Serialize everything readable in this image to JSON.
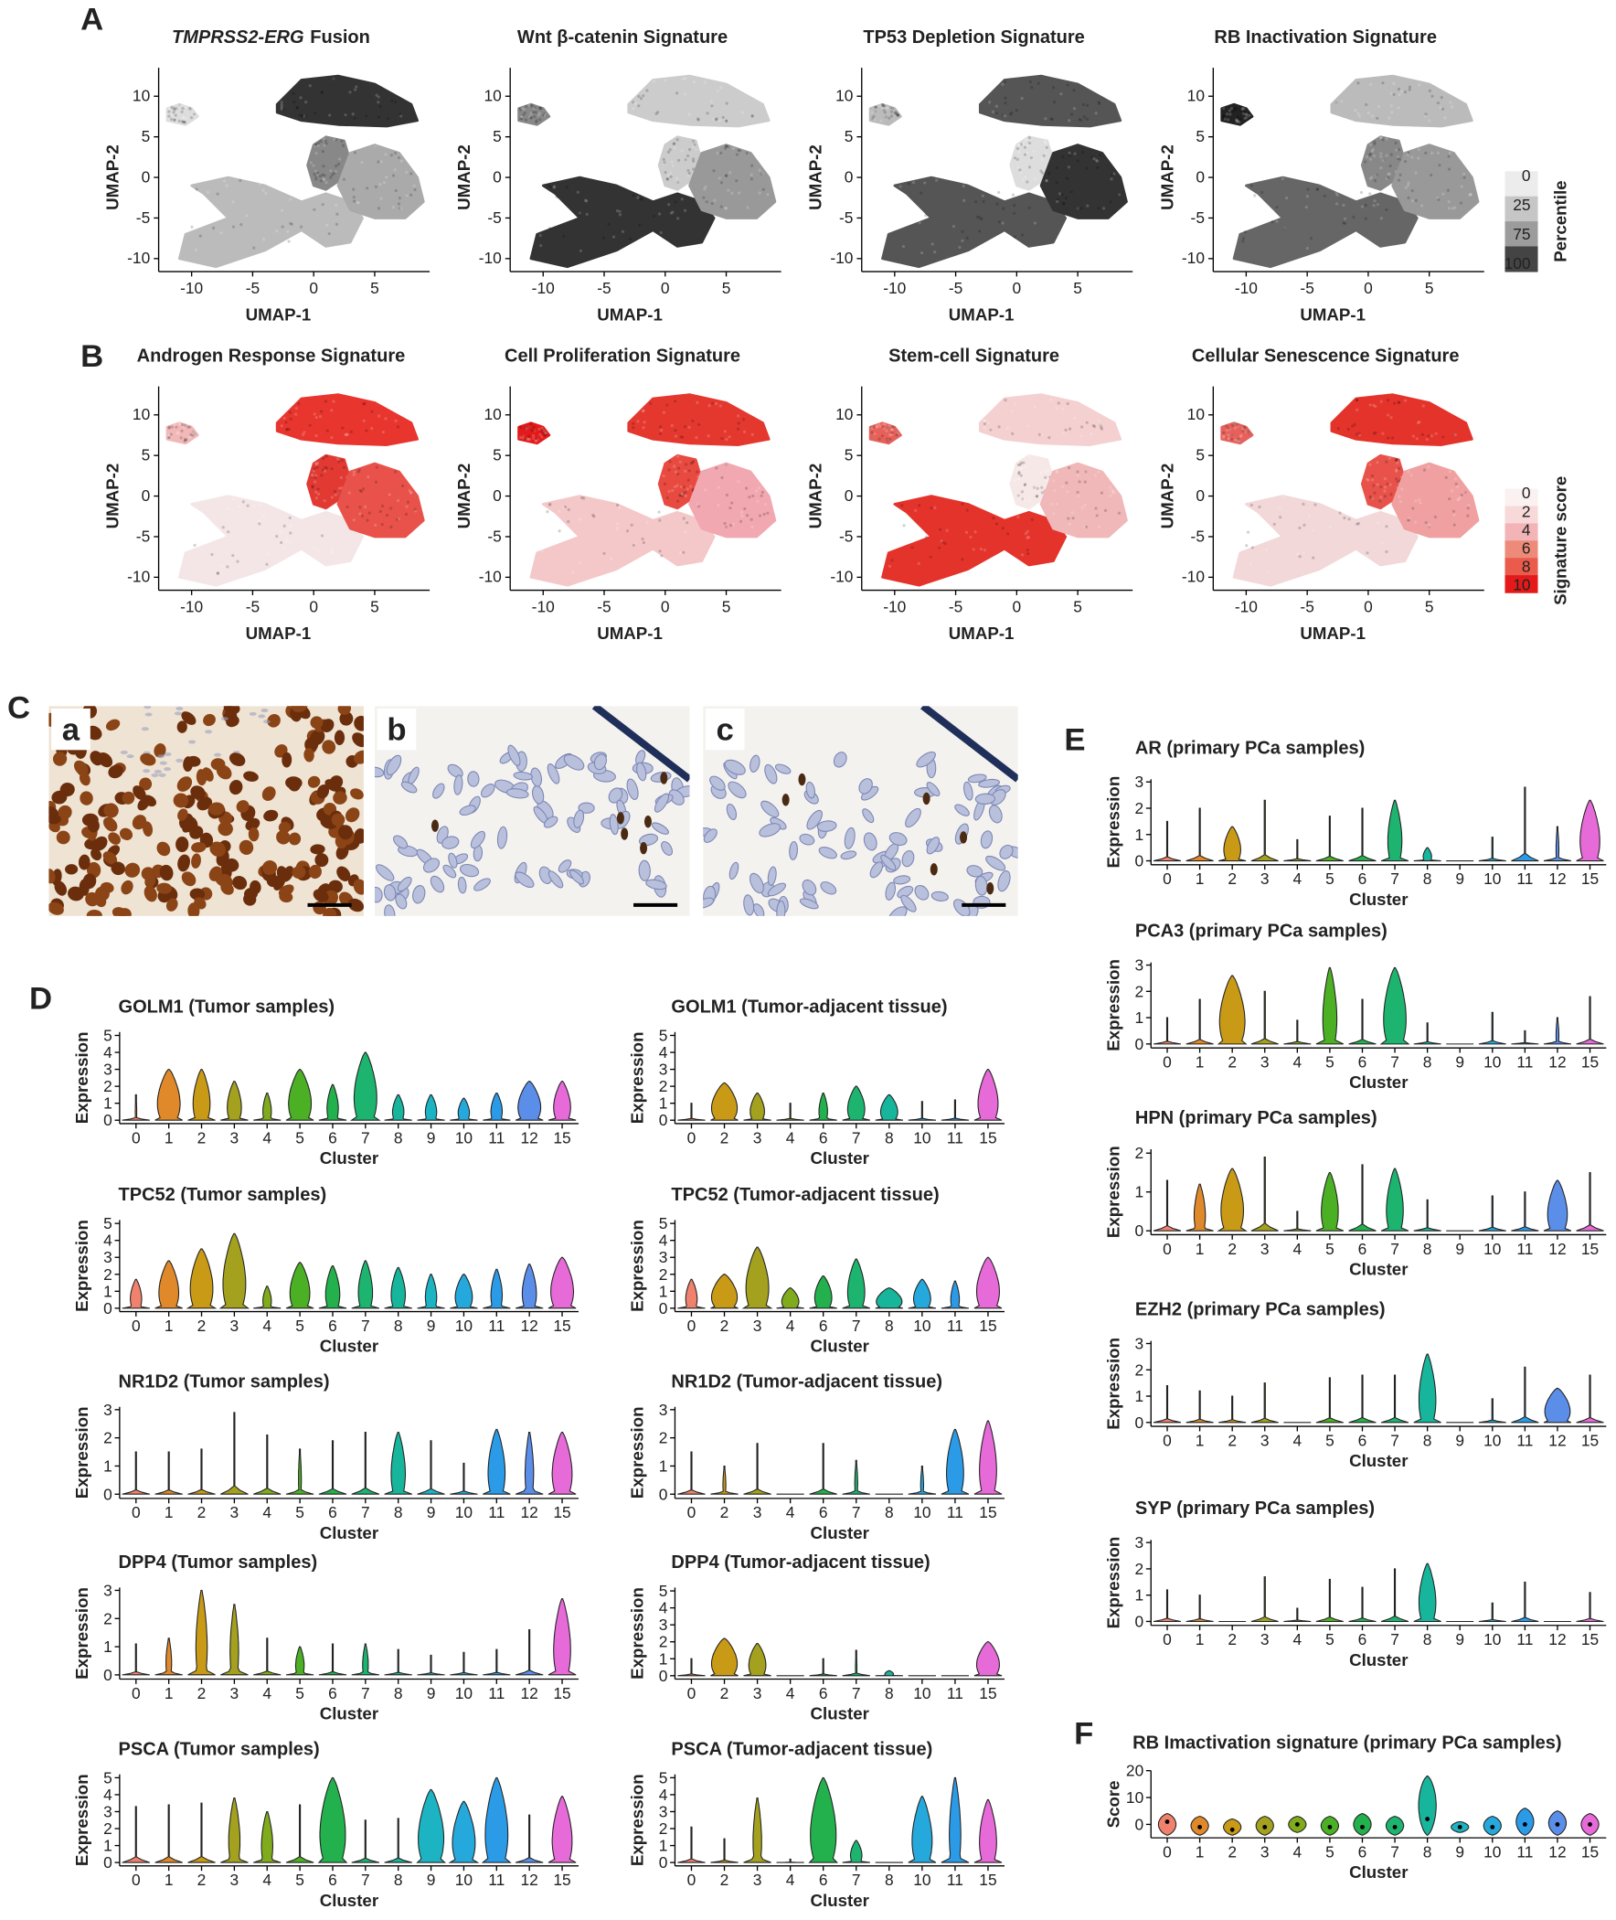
{
  "panel_labels": [
    "A",
    "B",
    "C",
    "D",
    "E",
    "F"
  ],
  "images": {
    "labels": [
      "a",
      "b",
      "c"
    ]
  },
  "cluster_colors": {
    "0": "#f0826d",
    "1": "#e0892a",
    "2": "#c99a16",
    "3": "#a3a11d",
    "4": "#7fab1c",
    "5": "#4cb025",
    "6": "#22b14c",
    "7": "#1db46f",
    "8": "#17b59b",
    "9": "#1cb3c3",
    "10": "#25a9dc",
    "11": "#2b9be8",
    "12": "#5b8ee8",
    "15": "#e66ad7"
  },
  "legends": [
    {
      "title": "Percentile",
      "labels": [
        0,
        25,
        75,
        100
      ],
      "colors": [
        "#ececec",
        "#c6c6c6",
        "#9c9c9c",
        "#444444"
      ]
    },
    {
      "title": "Signature score",
      "labels": [
        0,
        2,
        4,
        6,
        8,
        10
      ],
      "colors": [
        "#fbf1f1",
        "#f8d9d9",
        "#f3b4b8",
        "#ee8a7a",
        "#ea5b4b",
        "#e41a1a"
      ]
    }
  ],
  "chart_data": [
    {
      "type": "umap",
      "title_italic": "TMPRSS2-ERG",
      "title": "Fusion",
      "xlabel": "UMAP-1",
      "ylabel": "UMAP-2",
      "xlim": [
        -12.7,
        9.5
      ],
      "ylim": [
        -11.6,
        13.5
      ],
      "xticks": [
        -10,
        -5,
        0,
        5
      ],
      "yticks": [
        -10,
        -5,
        0,
        5,
        10
      ],
      "region_colors": [
        "#333333",
        "#dddddd",
        "#888888",
        "#bbbbbb",
        "#aaaaaa"
      ]
    },
    {
      "type": "umap",
      "title": "Wnt β-catenin Signature",
      "xlabel": "UMAP-1",
      "ylabel": "UMAP-2",
      "xlim": [
        -12.7,
        9.5
      ],
      "ylim": [
        -11.6,
        13.5
      ],
      "xticks": [
        -10,
        -5,
        0,
        5
      ],
      "yticks": [
        -10,
        -5,
        0,
        5,
        10
      ],
      "region_colors": [
        "#cccccc",
        "#888888",
        "#cccccc",
        "#333333",
        "#999999"
      ]
    },
    {
      "type": "umap",
      "title": "TP53 Depletion Signature",
      "xlabel": "UMAP-1",
      "ylabel": "UMAP-2",
      "xlim": [
        -12.7,
        9.5
      ],
      "ylim": [
        -11.6,
        13.5
      ],
      "xticks": [
        -10,
        -5,
        0,
        5
      ],
      "yticks": [
        -10,
        -5,
        0,
        5,
        10
      ],
      "region_colors": [
        "#555555",
        "#bbbbbb",
        "#dddddd",
        "#555555",
        "#333333"
      ]
    },
    {
      "type": "umap",
      "title": "RB Inactivation Signature",
      "xlabel": "UMAP-1",
      "ylabel": "UMAP-2",
      "xlim": [
        -12.7,
        9.5
      ],
      "ylim": [
        -11.6,
        13.5
      ],
      "xticks": [
        -10,
        -5,
        0,
        5
      ],
      "yticks": [
        -10,
        -5,
        0,
        5,
        10
      ],
      "region_colors": [
        "#bbbbbb",
        "#222222",
        "#888888",
        "#666666",
        "#999999"
      ]
    },
    {
      "type": "umap",
      "title": "Androgen Response Signature",
      "xlabel": "UMAP-1",
      "ylabel": "UMAP-2",
      "xlim": [
        -12.7,
        9.5
      ],
      "ylim": [
        -11.6,
        13.5
      ],
      "xticks": [
        -10,
        -5,
        0,
        5
      ],
      "yticks": [
        -10,
        -5,
        0,
        5,
        10
      ],
      "region_colors": [
        "#e8352e",
        "#f2b8b8",
        "#e23a33",
        "#f4e6e6",
        "#e8524a"
      ]
    },
    {
      "type": "umap",
      "title": "Cell Proliferation Signature",
      "xlabel": "UMAP-1",
      "ylabel": "UMAP-2",
      "xlim": [
        -12.7,
        9.5
      ],
      "ylim": [
        -11.6,
        13.5
      ],
      "xticks": [
        -10,
        -5,
        0,
        5
      ],
      "yticks": [
        -10,
        -5,
        0,
        5,
        10
      ],
      "region_colors": [
        "#e4382f",
        "#e41a1a",
        "#e84a40",
        "#f4c8c8",
        "#f2a8b0"
      ]
    },
    {
      "type": "umap",
      "title": "Stem-cell Signature",
      "xlabel": "UMAP-1",
      "ylabel": "UMAP-2",
      "xlim": [
        -12.7,
        9.5
      ],
      "ylim": [
        -11.6,
        13.5
      ],
      "xticks": [
        -10,
        -5,
        0,
        5
      ],
      "yticks": [
        -10,
        -5,
        0,
        5,
        10
      ],
      "region_colors": [
        "#f4d0d0",
        "#e8605a",
        "#f7e8e8",
        "#e4332b",
        "#f0b8b8"
      ]
    },
    {
      "type": "umap",
      "title": "Cellular Senescence Signature",
      "xlabel": "UMAP-1",
      "ylabel": "UMAP-2",
      "xlim": [
        -12.7,
        9.5
      ],
      "ylim": [
        -11.6,
        13.5
      ],
      "xticks": [
        -10,
        -5,
        0,
        5
      ],
      "yticks": [
        -10,
        -5,
        0,
        5,
        10
      ],
      "region_colors": [
        "#e4332b",
        "#e8605a",
        "#e8524a",
        "#f2d8d8",
        "#f0a0a0"
      ]
    },
    {
      "type": "violin",
      "title": "GOLM1 (Tumor samples)",
      "xlabel": "Cluster",
      "ylabel": "Expression",
      "categories": [
        "0",
        "1",
        "2",
        "3",
        "4",
        "5",
        "6",
        "7",
        "8",
        "9",
        "10",
        "11",
        "12",
        "15"
      ],
      "ylim": [
        -0.2,
        5.2
      ],
      "yticks": [
        0,
        1,
        2,
        3,
        4,
        5
      ],
      "values": [
        1.5,
        3,
        3,
        2.3,
        1.6,
        3,
        2.1,
        4,
        1.5,
        1.5,
        1.3,
        1.6,
        2.3,
        2.3
      ],
      "widths": [
        0.05,
        0.8,
        0.6,
        0.5,
        0.3,
        0.8,
        0.4,
        0.8,
        0.4,
        0.4,
        0.4,
        0.4,
        0.8,
        0.6
      ]
    },
    {
      "type": "violin",
      "title": "GOLM1 (Tumor-adjacent tissue)",
      "xlabel": "Cluster",
      "ylabel": "Expression",
      "categories": [
        "0",
        "2",
        "3",
        "4",
        "6",
        "7",
        "8",
        "10",
        "11",
        "15"
      ],
      "ylim": [
        -0.2,
        5.2
      ],
      "yticks": [
        0,
        1,
        2,
        3,
        4,
        5
      ],
      "values": [
        1,
        2.2,
        1.6,
        1,
        1.6,
        2,
        1.5,
        1.1,
        1.2,
        3
      ],
      "widths": [
        0.03,
        0.9,
        0.5,
        0.03,
        0.3,
        0.6,
        0.6,
        0.03,
        0.03,
        0.7
      ]
    },
    {
      "type": "violin",
      "title": "TPC52 (Tumor samples)",
      "xlabel": "Cluster",
      "ylabel": "Expression",
      "categories": [
        "0",
        "1",
        "2",
        "3",
        "4",
        "5",
        "6",
        "7",
        "8",
        "9",
        "10",
        "11",
        "12",
        "15"
      ],
      "ylim": [
        -0.2,
        5.2
      ],
      "yticks": [
        0,
        1,
        2,
        3,
        4,
        5
      ],
      "values": [
        1.7,
        2.8,
        3.5,
        4.4,
        1.3,
        2.7,
        2.5,
        2.8,
        2.4,
        2,
        2,
        2.3,
        2.6,
        3
      ],
      "widths": [
        0.4,
        0.7,
        0.8,
        0.8,
        0.3,
        0.7,
        0.5,
        0.5,
        0.5,
        0.4,
        0.6,
        0.4,
        0.5,
        0.8
      ]
    },
    {
      "type": "violin",
      "title": "TPC52 (Tumor-adjacent tissue)",
      "xlabel": "Cluster",
      "ylabel": "Expression",
      "categories": [
        "0",
        "2",
        "3",
        "4",
        "6",
        "7",
        "8",
        "10",
        "11",
        "15"
      ],
      "ylim": [
        -0.2,
        5.2
      ],
      "yticks": [
        0,
        1,
        2,
        3,
        4,
        5
      ],
      "values": [
        1.7,
        2,
        3.6,
        1.2,
        1.9,
        2.9,
        1.2,
        1.7,
        1.6,
        3
      ],
      "widths": [
        0.4,
        0.9,
        0.8,
        0.6,
        0.6,
        0.6,
        0.9,
        0.6,
        0.3,
        0.8
      ]
    },
    {
      "type": "violin",
      "title": "NR1D2 (Tumor samples)",
      "xlabel": "Cluster",
      "ylabel": "Expression",
      "categories": [
        "0",
        "1",
        "2",
        "3",
        "4",
        "5",
        "6",
        "7",
        "8",
        "9",
        "10",
        "11",
        "12",
        "15"
      ],
      "ylim": [
        -0.15,
        3.1
      ],
      "yticks": [
        0,
        1,
        2,
        3
      ],
      "values": [
        1.5,
        1.5,
        1.6,
        2.9,
        2.1,
        1.6,
        1.9,
        2.2,
        2.2,
        1.9,
        1.1,
        2.3,
        2.2,
        2.2
      ],
      "widths": [
        0.03,
        0.03,
        0.03,
        0.03,
        0.03,
        0.1,
        0.03,
        0.03,
        0.5,
        0.03,
        0.03,
        0.6,
        0.3,
        0.7
      ]
    },
    {
      "type": "violin",
      "title": "NR1D2 (Tumor-adjacent tissue)",
      "xlabel": "Cluster",
      "ylabel": "Expression",
      "categories": [
        "0",
        "2",
        "3",
        "4",
        "6",
        "7",
        "8",
        "10",
        "11",
        "15"
      ],
      "ylim": [
        -0.15,
        3.1
      ],
      "yticks": [
        0,
        1,
        2,
        3
      ],
      "values": [
        1.5,
        1,
        1.8,
        0,
        1.8,
        1.2,
        0,
        1,
        2.3,
        2.6
      ],
      "widths": [
        0.03,
        0.1,
        0.03,
        0.03,
        0.03,
        0.1,
        0.03,
        0.1,
        0.6,
        0.6
      ]
    },
    {
      "type": "violin",
      "title": "DPP4 (Tumor samples)",
      "xlabel": "Cluster",
      "ylabel": "Expression",
      "categories": [
        "0",
        "1",
        "2",
        "3",
        "4",
        "5",
        "6",
        "7",
        "8",
        "9",
        "10",
        "11",
        "12",
        "15"
      ],
      "ylim": [
        -0.15,
        3.1
      ],
      "yticks": [
        0,
        1,
        2,
        3
      ],
      "values": [
        1.1,
        1.3,
        3,
        2.5,
        1.3,
        1,
        1.1,
        1.1,
        0.9,
        0.7,
        0.8,
        0.9,
        1.6,
        2.7
      ],
      "widths": [
        0.03,
        0.2,
        0.4,
        0.3,
        0.03,
        0.3,
        0.03,
        0.2,
        0.03,
        0.03,
        0.03,
        0.03,
        0.03,
        0.6
      ]
    },
    {
      "type": "violin",
      "title": "DPP4 (Tumor-adjacent tissue)",
      "xlabel": "Cluster",
      "ylabel": "Expression",
      "categories": [
        "0",
        "2",
        "3",
        "4",
        "6",
        "7",
        "8",
        "10",
        "11",
        "15"
      ],
      "ylim": [
        -0.2,
        5.2
      ],
      "yticks": [
        0,
        1,
        2,
        3,
        4,
        5
      ],
      "values": [
        1,
        2.2,
        1.9,
        0,
        1,
        1.5,
        0.3,
        0,
        0,
        2
      ],
      "widths": [
        0.03,
        0.9,
        0.6,
        0.03,
        0.03,
        0.05,
        0.3,
        0.03,
        0.03,
        0.8
      ]
    },
    {
      "type": "violin",
      "title": "PSCA (Tumor samples)",
      "xlabel": "Cluster",
      "ylabel": "Expression",
      "categories": [
        "0",
        "1",
        "2",
        "3",
        "4",
        "5",
        "6",
        "7",
        "8",
        "9",
        "10",
        "11",
        "12",
        "15"
      ],
      "ylim": [
        -0.2,
        5.2
      ],
      "yticks": [
        0,
        1,
        2,
        3,
        4,
        5
      ],
      "values": [
        3.3,
        3.4,
        3.5,
        3.8,
        3,
        3.4,
        5,
        2.5,
        2.6,
        4.3,
        3.6,
        5,
        2.8,
        3.9
      ],
      "widths": [
        0.03,
        0.03,
        0.03,
        0.4,
        0.4,
        0.03,
        0.9,
        0.03,
        0.03,
        0.9,
        0.8,
        0.8,
        0.03,
        0.7
      ]
    },
    {
      "type": "violin",
      "title": "PSCA (Tumor-adjacent tissue)",
      "xlabel": "Cluster",
      "ylabel": "Expression",
      "categories": [
        "0",
        "2",
        "3",
        "4",
        "6",
        "7",
        "8",
        "10",
        "11",
        "15"
      ],
      "ylim": [
        -0.2,
        5.2
      ],
      "yticks": [
        0,
        1,
        2,
        3,
        4,
        5
      ],
      "values": [
        2.1,
        1.4,
        3.8,
        0.2,
        5,
        1.3,
        0,
        3.9,
        5,
        3.7
      ],
      "widths": [
        0.03,
        0.03,
        0.3,
        0.03,
        0.9,
        0.4,
        0.03,
        0.7,
        0.4,
        0.6
      ]
    },
    {
      "type": "violin",
      "title": "AR (primary PCa samples)",
      "xlabel": "Cluster",
      "ylabel": "Expression",
      "categories": [
        "0",
        "1",
        "2",
        "3",
        "4",
        "5",
        "6",
        "7",
        "8",
        "9",
        "10",
        "11",
        "12",
        "15"
      ],
      "ylim": [
        -0.15,
        3.1
      ],
      "yticks": [
        0,
        1,
        2,
        3
      ],
      "values": [
        1.5,
        2,
        1.3,
        2.3,
        0.8,
        1.7,
        2,
        2.3,
        0.5,
        0,
        0.9,
        2.8,
        1.3,
        2.3
      ],
      "widths": [
        0.03,
        0.03,
        0.6,
        0.03,
        0.03,
        0.03,
        0.03,
        0.5,
        0.3,
        0.03,
        0.03,
        0.03,
        0.1,
        0.7
      ]
    },
    {
      "type": "violin",
      "title": "PCA3 (primary PCa samples)",
      "xlabel": "Cluster",
      "ylabel": "Expression",
      "categories": [
        "0",
        "1",
        "2",
        "3",
        "4",
        "5",
        "6",
        "7",
        "8",
        "9",
        "10",
        "11",
        "12",
        "15"
      ],
      "ylim": [
        -0.15,
        3.1
      ],
      "yticks": [
        0,
        1,
        2,
        3
      ],
      "values": [
        1,
        1.7,
        2.6,
        2,
        0.9,
        2.9,
        1.7,
        2.9,
        0.8,
        0,
        1.2,
        0.5,
        1,
        1.8
      ],
      "widths": [
        0.03,
        0.03,
        0.9,
        0.03,
        0.03,
        0.5,
        0.03,
        0.8,
        0.03,
        0.03,
        0.03,
        0.03,
        0.1,
        0.03
      ]
    },
    {
      "type": "violin",
      "title": "HPN (primary PCa samples)",
      "xlabel": "Cluster",
      "ylabel": "Expression",
      "categories": [
        "0",
        "1",
        "2",
        "3",
        "4",
        "5",
        "6",
        "7",
        "8",
        "9",
        "10",
        "11",
        "12",
        "15"
      ],
      "ylim": [
        -0.1,
        2.1
      ],
      "yticks": [
        0,
        1,
        2
      ],
      "values": [
        1.3,
        1.2,
        1.6,
        1.9,
        0.5,
        1.5,
        1.7,
        1.6,
        0.8,
        0,
        0.9,
        1,
        1.3,
        1.5
      ],
      "widths": [
        0.03,
        0.4,
        0.8,
        0.03,
        0.03,
        0.6,
        0.03,
        0.6,
        0.03,
        0.03,
        0.03,
        0.03,
        0.7,
        0.03
      ]
    },
    {
      "type": "violin",
      "title": "EZH2 (primary PCa samples)",
      "xlabel": "Cluster",
      "ylabel": "Expression",
      "categories": [
        "0",
        "1",
        "2",
        "3",
        "4",
        "5",
        "6",
        "7",
        "8",
        "9",
        "10",
        "11",
        "12",
        "15"
      ],
      "ylim": [
        -0.15,
        3.1
      ],
      "yticks": [
        0,
        1,
        2,
        3
      ],
      "values": [
        1.4,
        1.2,
        1,
        1.5,
        0,
        1.7,
        1.8,
        1.8,
        2.6,
        0,
        0.9,
        2.1,
        1.3,
        1.8
      ],
      "widths": [
        0.03,
        0.03,
        0.03,
        0.03,
        0.03,
        0.03,
        0.03,
        0.03,
        0.6,
        0.03,
        0.03,
        0.03,
        0.9,
        0.03
      ]
    },
    {
      "type": "violin",
      "title": "SYP (primary PCa samples)",
      "xlabel": "Cluster",
      "ylabel": "Expression",
      "categories": [
        "0",
        "1",
        "2",
        "3",
        "4",
        "5",
        "6",
        "7",
        "8",
        "9",
        "10",
        "11",
        "12",
        "15"
      ],
      "ylim": [
        -0.15,
        3.1
      ],
      "yticks": [
        0,
        1,
        2,
        3
      ],
      "values": [
        1.2,
        1,
        0,
        1.7,
        0.5,
        1.6,
        1.3,
        2,
        2.2,
        0,
        0.7,
        1.5,
        0,
        1.1
      ],
      "widths": [
        0.03,
        0.03,
        0.03,
        0.03,
        0.03,
        0.03,
        0.03,
        0.03,
        0.6,
        0.03,
        0.03,
        0.03,
        0.03,
        0.03
      ]
    },
    {
      "type": "violin",
      "title": "RB Imactivation signature (primary PCa samples)",
      "xlabel": "Cluster",
      "ylabel": "Score",
      "categories": [
        "0",
        "1",
        "2",
        "3",
        "4",
        "5",
        "6",
        "7",
        "8",
        "9",
        "10",
        "11",
        "12",
        "15"
      ],
      "ylim": [
        -5,
        20
      ],
      "yticks": [
        0,
        10,
        20
      ],
      "medians": [
        1,
        -1,
        -2,
        -1,
        0,
        -1,
        -1,
        -1,
        2,
        -1,
        -1,
        0,
        0,
        0
      ],
      "lows": [
        -4,
        -4,
        -4,
        -4,
        -3,
        -4,
        -4,
        -4,
        -4,
        -3,
        -4,
        -4,
        -4,
        -4
      ],
      "highs": [
        4,
        3,
        2,
        3,
        3,
        3,
        4,
        3,
        18,
        1,
        3,
        6,
        5,
        4
      ],
      "widths": [
        0.6,
        0.6,
        0.6,
        0.6,
        0.6,
        0.6,
        0.6,
        0.6,
        0.6,
        0.6,
        0.6,
        0.6,
        0.6,
        0.6
      ]
    }
  ]
}
